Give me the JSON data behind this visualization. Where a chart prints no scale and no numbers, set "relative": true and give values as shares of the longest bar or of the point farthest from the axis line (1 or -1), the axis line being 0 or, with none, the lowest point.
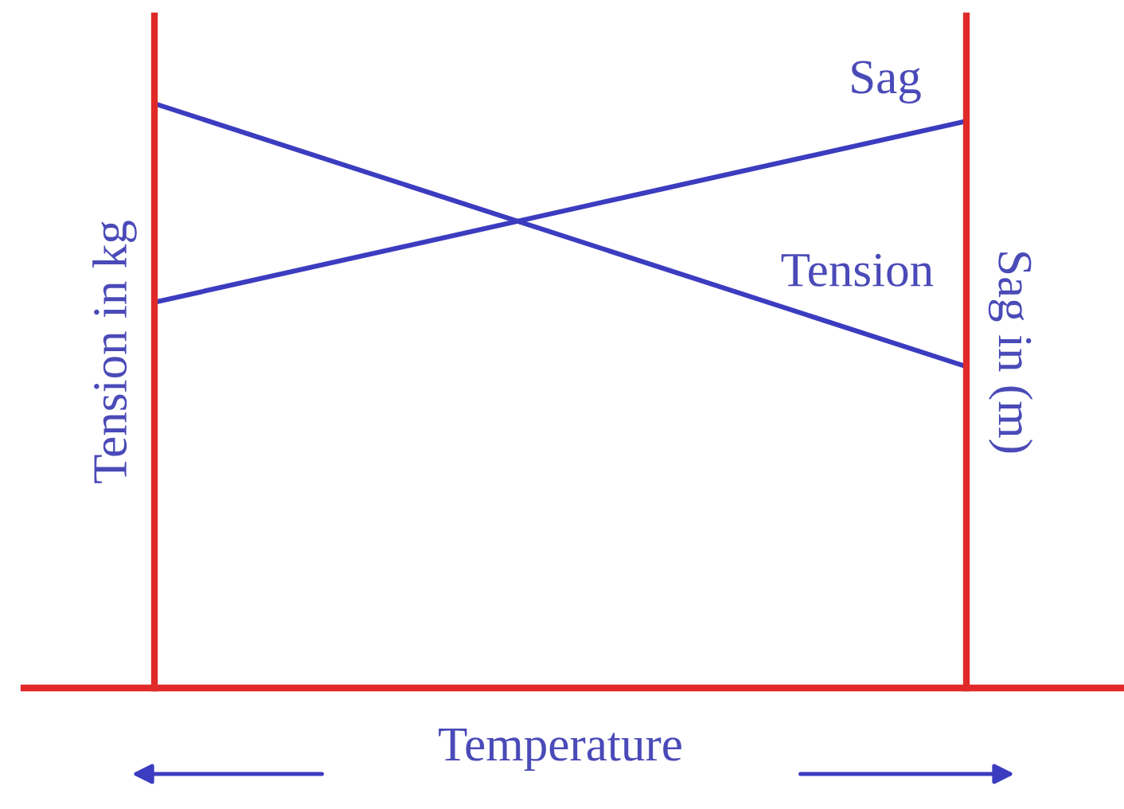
{
  "chart_data": {
    "type": "line",
    "relative": true,
    "categories": [
      null,
      null
    ],
    "xlabel": "Temperature",
    "ylabel": "Tension in kg",
    "y2label": "Sag in (m)",
    "series": [
      {
        "name": "Tension",
        "color": "#3c3cc0",
        "values": [
          1,
          0.55
        ]
      },
      {
        "name": "Sag",
        "color": "#3c3cc0",
        "values": [
          0.66,
          0.97
        ]
      }
    ],
    "legend": false,
    "marker": "none",
    "line_style": "solid"
  }
}
